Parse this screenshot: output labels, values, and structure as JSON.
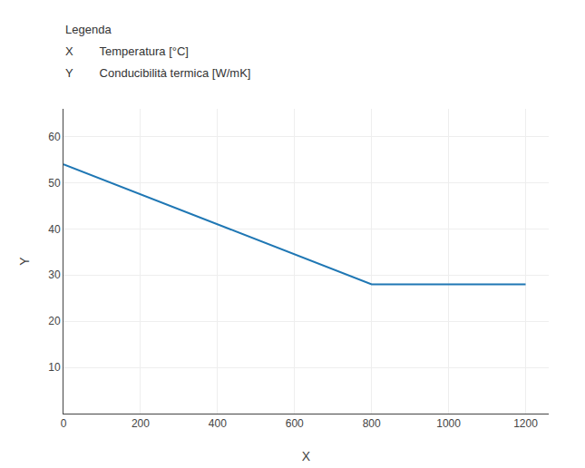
{
  "chart_data": {
    "type": "line",
    "x": [
      0,
      800,
      1200
    ],
    "values": [
      54,
      28,
      28
    ],
    "xlim": [
      0,
      1260
    ],
    "ylim": [
      0,
      66
    ],
    "xticks": [
      0,
      200,
      400,
      600,
      800,
      1000,
      1200
    ],
    "yticks": [
      10,
      20,
      30,
      40,
      50,
      60
    ],
    "xlabel": "X",
    "ylabel": "Y",
    "grid": true,
    "annotations": [
      "Legenda",
      "X        Temperatura [°C]",
      "Y        Conducibilità termica [W/mK]"
    ]
  }
}
